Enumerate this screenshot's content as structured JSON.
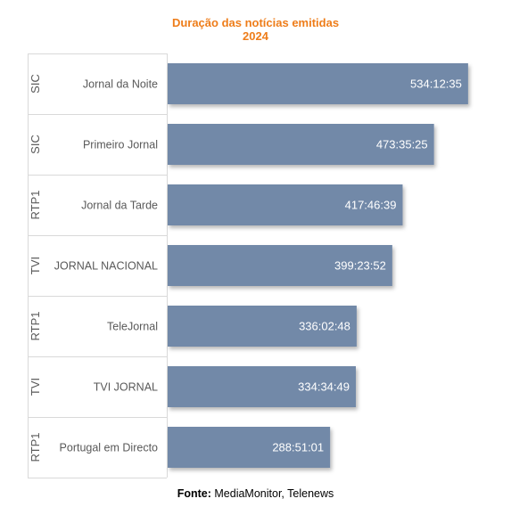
{
  "chart_data": {
    "type": "bar",
    "orientation": "horizontal",
    "title": "Duração das notícias emitidas",
    "subtitle": "2024",
    "categories": [
      {
        "channel": "SIC",
        "program": "Jornal da Noite"
      },
      {
        "channel": "SIC",
        "program": "Primeiro Jornal"
      },
      {
        "channel": "RTP1",
        "program": "Jornal da Tarde"
      },
      {
        "channel": "TVI",
        "program": "JORNAL NACIONAL"
      },
      {
        "channel": "RTP1",
        "program": "TeleJornal"
      },
      {
        "channel": "TVI",
        "program": "TVI JORNAL"
      },
      {
        "channel": "RTP1",
        "program": "Portugal em Directo"
      }
    ],
    "values": [
      534.2097,
      473.5903,
      417.7775,
      399.3978,
      336.0467,
      334.5803,
      288.8503
    ],
    "value_labels": [
      "534:12:35",
      "473:35:25",
      "417:46:39",
      "399:23:52",
      "336:02:48",
      "334:34:49",
      "288:51:01"
    ],
    "value_unit": "hours",
    "xlim": [
      0,
      555
    ],
    "grid": false,
    "legend": "none",
    "bar_color": "#7289a8",
    "title_color": "#ee7d1a"
  },
  "source": {
    "label": "Fonte:",
    "text": "MediaMonitor, Telenews"
  }
}
